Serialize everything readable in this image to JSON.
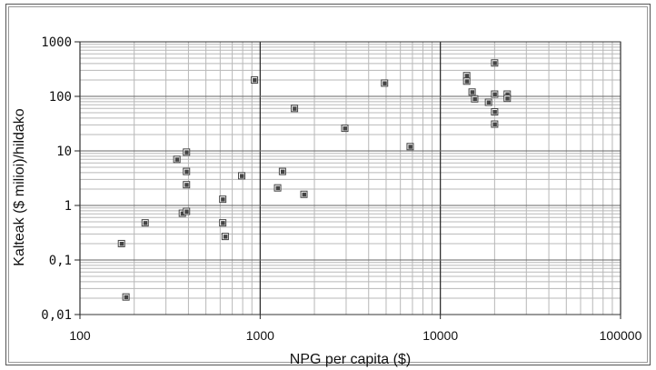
{
  "chart_data": {
    "type": "scatter",
    "title": "",
    "xlabel": "NPG per capita ($)",
    "ylabel": "Kalteak ($ milioi)/hildako",
    "x_scale": "log",
    "y_scale": "log",
    "xlim": [
      100,
      100000
    ],
    "ylim": [
      0.01,
      1000
    ],
    "x_ticks": [
      100,
      1000,
      10000,
      100000
    ],
    "x_tick_labels": [
      "100",
      "1000",
      "10000",
      "100000"
    ],
    "y_ticks": [
      0.01,
      0.1,
      1,
      10,
      100,
      1000
    ],
    "y_tick_labels": [
      "0,01",
      "0,1",
      "1",
      "10",
      "100",
      "1000"
    ],
    "grid": true,
    "marker_color": "#444444",
    "points": [
      {
        "x": 170,
        "y": 0.2
      },
      {
        "x": 180,
        "y": 0.021
      },
      {
        "x": 230,
        "y": 0.48
      },
      {
        "x": 345,
        "y": 7
      },
      {
        "x": 370,
        "y": 0.72
      },
      {
        "x": 390,
        "y": 0.78
      },
      {
        "x": 390,
        "y": 9.5
      },
      {
        "x": 390,
        "y": 4.2
      },
      {
        "x": 390,
        "y": 2.4
      },
      {
        "x": 620,
        "y": 1.3
      },
      {
        "x": 620,
        "y": 0.48
      },
      {
        "x": 640,
        "y": 0.27
      },
      {
        "x": 790,
        "y": 3.5
      },
      {
        "x": 930,
        "y": 200
      },
      {
        "x": 1250,
        "y": 2.1
      },
      {
        "x": 1330,
        "y": 4.2
      },
      {
        "x": 1550,
        "y": 60
      },
      {
        "x": 1750,
        "y": 1.6
      },
      {
        "x": 2950,
        "y": 26
      },
      {
        "x": 4900,
        "y": 175
      },
      {
        "x": 6800,
        "y": 12
      },
      {
        "x": 14000,
        "y": 240
      },
      {
        "x": 14000,
        "y": 190
      },
      {
        "x": 15000,
        "y": 120
      },
      {
        "x": 15500,
        "y": 90
      },
      {
        "x": 18500,
        "y": 78
      },
      {
        "x": 20000,
        "y": 410
      },
      {
        "x": 20000,
        "y": 110
      },
      {
        "x": 20000,
        "y": 52
      },
      {
        "x": 20000,
        "y": 31
      },
      {
        "x": 23500,
        "y": 110
      },
      {
        "x": 23500,
        "y": 92
      }
    ]
  }
}
